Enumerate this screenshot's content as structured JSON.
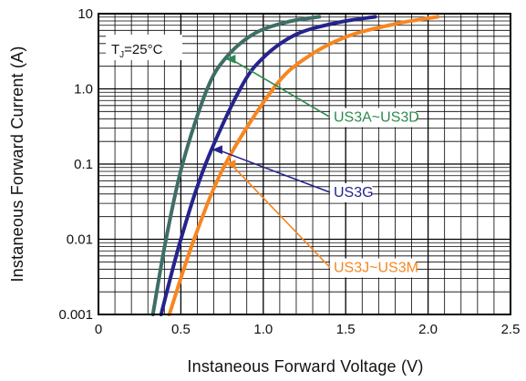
{
  "chart_data": {
    "type": "line",
    "xlabel": "Instaneous Forward Voltage (V)",
    "ylabel": "Instaneous Forward Current (A)",
    "xlim": [
      0,
      2.5
    ],
    "ylim": [
      0.001,
      10
    ],
    "yscale": "log",
    "grid": true,
    "x_ticks": [
      "0",
      "0.5",
      "1.0",
      "1.5",
      "2.0",
      "2.5"
    ],
    "y_ticks": [
      "0.001",
      "0.01",
      "0.1",
      "1.0",
      "10"
    ],
    "condition": {
      "main": "T",
      "sub": "J",
      "rest": "=25°C"
    },
    "series": [
      {
        "name": "US3A~US3D",
        "color": "#3e6e66",
        "points": [
          [
            0.33,
            0.001
          ],
          [
            0.41,
            0.01
          ],
          [
            0.51,
            0.1
          ],
          [
            0.66,
            1.0
          ],
          [
            0.78,
            2.7
          ],
          [
            0.95,
            5.5
          ],
          [
            1.15,
            7.8
          ],
          [
            1.34,
            9.1
          ]
        ]
      },
      {
        "name": "US3G",
        "color": "#26238c",
        "points": [
          [
            0.38,
            0.001
          ],
          [
            0.5,
            0.01
          ],
          [
            0.65,
            0.1
          ],
          [
            0.86,
            1.0
          ],
          [
            1.0,
            2.6
          ],
          [
            1.2,
            5.3
          ],
          [
            1.45,
            7.6
          ],
          [
            1.68,
            9.1
          ]
        ]
      },
      {
        "name": "US3J~US3M",
        "color": "#f7861f",
        "points": [
          [
            0.43,
            0.001
          ],
          [
            0.58,
            0.01
          ],
          [
            0.77,
            0.1
          ],
          [
            1.06,
            1.0
          ],
          [
            1.25,
            2.5
          ],
          [
            1.5,
            4.9
          ],
          [
            1.8,
            7.3
          ],
          [
            2.06,
            9.1
          ]
        ]
      }
    ],
    "annotations": [
      {
        "text": "US3A~US3D",
        "series": 0,
        "color": "#2f8a50",
        "label_y": 1.0,
        "arrow_x": 0.77
      },
      {
        "text": "US3G",
        "series": 1,
        "color": "#26238c",
        "label_y": 0.1,
        "arrow_x": 0.69
      },
      {
        "text": "US3J~US3M",
        "series": 2,
        "color": "#f7861f",
        "label_y": 0.01,
        "arrow_x": 0.77
      }
    ]
  }
}
